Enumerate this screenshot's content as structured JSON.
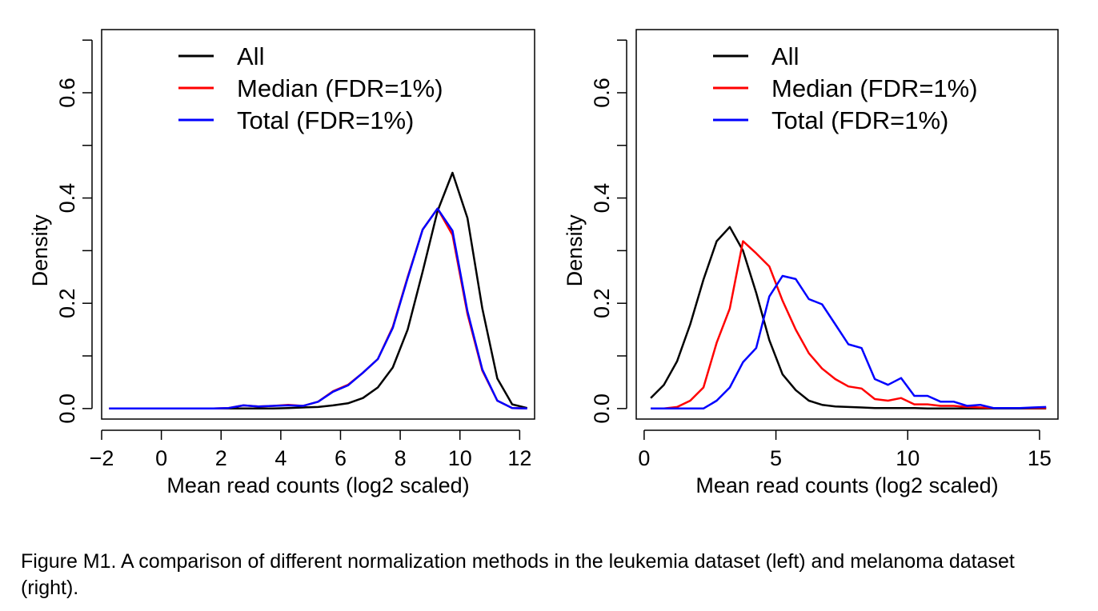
{
  "caption": "Figure M1. A comparison of different normalization methods in the leukemia dataset (left) and melanoma dataset (right).",
  "chart_data": [
    {
      "type": "line",
      "title": "",
      "xlabel": "Mean read counts (log2 scaled)",
      "ylabel": "Density",
      "xlim": [
        -2,
        12.5
      ],
      "ylim": [
        -0.02,
        0.72
      ],
      "xticks": [
        -2,
        0,
        2,
        4,
        6,
        8,
        10,
        12
      ],
      "xtick_labels": [
        "−2",
        "0",
        "2",
        "4",
        "6",
        "8",
        "10",
        "12"
      ],
      "yticks": [
        0.0,
        0.1,
        0.2,
        0.3,
        0.4,
        0.5,
        0.6,
        0.7
      ],
      "ytick_labels": [
        "0.0",
        "",
        "0.2",
        "",
        "0.4",
        "",
        "0.6",
        ""
      ],
      "legend_position": "top",
      "series": [
        {
          "name": "All",
          "color": "#000000",
          "x": [
            -1.75,
            -1.25,
            -0.75,
            -0.25,
            0.25,
            0.75,
            1.25,
            1.75,
            2.25,
            2.75,
            3.25,
            3.75,
            4.25,
            4.75,
            5.25,
            5.75,
            6.25,
            6.75,
            7.25,
            7.75,
            8.25,
            8.75,
            9.25,
            9.75,
            10.25,
            10.75,
            11.25,
            11.75,
            12.25
          ],
          "y": [
            0,
            0,
            0,
            0,
            0,
            0,
            0,
            0,
            0,
            0,
            0,
            0,
            0.001,
            0.002,
            0.003,
            0.006,
            0.01,
            0.02,
            0.04,
            0.078,
            0.15,
            0.26,
            0.375,
            0.448,
            0.362,
            0.19,
            0.057,
            0.008,
            0.001
          ]
        },
        {
          "name": "Median (FDR=1%)",
          "color": "#ff0000",
          "x": [
            -1.75,
            -1.25,
            -0.75,
            -0.25,
            0.25,
            0.75,
            1.25,
            1.75,
            2.25,
            2.75,
            3.25,
            3.75,
            4.25,
            4.75,
            5.25,
            5.75,
            6.25,
            6.75,
            7.25,
            7.75,
            8.25,
            8.75,
            9.25,
            9.75,
            10.25,
            10.75,
            11.25,
            11.75,
            12.25
          ],
          "y": [
            0,
            0,
            0,
            0,
            0,
            0,
            0,
            0,
            0.001,
            0.006,
            0.004,
            0.005,
            0.007,
            0.005,
            0.013,
            0.033,
            0.045,
            0.068,
            0.094,
            0.155,
            0.25,
            0.34,
            0.38,
            0.33,
            0.18,
            0.072,
            0.015,
            0.001,
            0
          ]
        },
        {
          "name": "Total (FDR=1%)",
          "color": "#0000ff",
          "x": [
            -1.75,
            -1.25,
            -0.75,
            -0.25,
            0.25,
            0.75,
            1.25,
            1.75,
            2.25,
            2.75,
            3.25,
            3.75,
            4.25,
            4.75,
            5.25,
            5.75,
            6.25,
            6.75,
            7.25,
            7.75,
            8.25,
            8.75,
            9.25,
            9.75,
            10.25,
            10.75,
            11.25,
            11.75,
            12.25
          ],
          "y": [
            0,
            0,
            0,
            0,
            0,
            0,
            0,
            0,
            0.001,
            0.006,
            0.004,
            0.005,
            0.006,
            0.005,
            0.013,
            0.032,
            0.044,
            0.068,
            0.094,
            0.153,
            0.248,
            0.34,
            0.38,
            0.338,
            0.185,
            0.074,
            0.015,
            0.001,
            0
          ]
        }
      ]
    },
    {
      "type": "line",
      "title": "",
      "xlabel": "Mean read counts (log2 scaled)",
      "ylabel": "Density",
      "xlim": [
        -0.3,
        15.7
      ],
      "ylim": [
        -0.02,
        0.72
      ],
      "xticks": [
        0,
        5,
        10,
        15
      ],
      "xtick_labels": [
        "0",
        "5",
        "10",
        "15"
      ],
      "yticks": [
        0.0,
        0.1,
        0.2,
        0.3,
        0.4,
        0.5,
        0.6,
        0.7
      ],
      "ytick_labels": [
        "0.0",
        "",
        "0.2",
        "",
        "0.4",
        "",
        "0.6",
        ""
      ],
      "legend_position": "top",
      "series": [
        {
          "name": "All",
          "color": "#000000",
          "x": [
            0.25,
            0.75,
            1.25,
            1.75,
            2.25,
            2.75,
            3.25,
            3.75,
            4.25,
            4.75,
            5.25,
            5.75,
            6.25,
            6.75,
            7.25,
            7.75,
            8.25,
            8.75,
            9.25,
            9.75,
            10.25,
            10.75,
            11.25,
            11.75,
            12.25,
            12.75,
            13.25,
            13.75,
            14.25,
            14.75,
            15.25
          ],
          "y": [
            0.02,
            0.045,
            0.09,
            0.16,
            0.245,
            0.318,
            0.345,
            0.3,
            0.22,
            0.13,
            0.065,
            0.035,
            0.015,
            0.007,
            0.004,
            0.003,
            0.002,
            0.001,
            0.001,
            0.001,
            0.001,
            0,
            0,
            0,
            0,
            0,
            0,
            0,
            0,
            0,
            0
          ]
        },
        {
          "name": "Median (FDR=1%)",
          "color": "#ff0000",
          "x": [
            0.25,
            0.75,
            1.25,
            1.75,
            2.25,
            2.75,
            3.25,
            3.75,
            4.25,
            4.75,
            5.25,
            5.75,
            6.25,
            6.75,
            7.25,
            7.75,
            8.25,
            8.75,
            9.25,
            9.75,
            10.25,
            10.75,
            11.25,
            11.75,
            12.25,
            12.75,
            13.25,
            13.75,
            14.25,
            14.75,
            15.25
          ],
          "y": [
            0,
            0,
            0.003,
            0.015,
            0.04,
            0.125,
            0.19,
            0.318,
            0.295,
            0.27,
            0.205,
            0.15,
            0.105,
            0.076,
            0.056,
            0.042,
            0.038,
            0.018,
            0.015,
            0.02,
            0.008,
            0.008,
            0.005,
            0.005,
            0.003,
            0.002,
            0.001,
            0.001,
            0.001,
            0.001,
            0.001
          ]
        },
        {
          "name": "Total (FDR=1%)",
          "color": "#0000ff",
          "x": [
            0.25,
            0.75,
            1.25,
            1.75,
            2.25,
            2.75,
            3.25,
            3.75,
            4.25,
            4.75,
            5.25,
            5.75,
            6.25,
            6.75,
            7.25,
            7.75,
            8.25,
            8.75,
            9.25,
            9.75,
            10.25,
            10.75,
            11.25,
            11.75,
            12.25,
            12.75,
            13.25,
            13.75,
            14.25,
            14.75,
            15.25
          ],
          "y": [
            0,
            0,
            0,
            0,
            0,
            0.015,
            0.04,
            0.088,
            0.115,
            0.213,
            0.252,
            0.246,
            0.208,
            0.198,
            0.16,
            0.122,
            0.115,
            0.056,
            0.045,
            0.058,
            0.024,
            0.024,
            0.013,
            0.013,
            0.005,
            0.007,
            0.001,
            0.001,
            0.001,
            0.002,
            0.003
          ]
        }
      ]
    }
  ]
}
